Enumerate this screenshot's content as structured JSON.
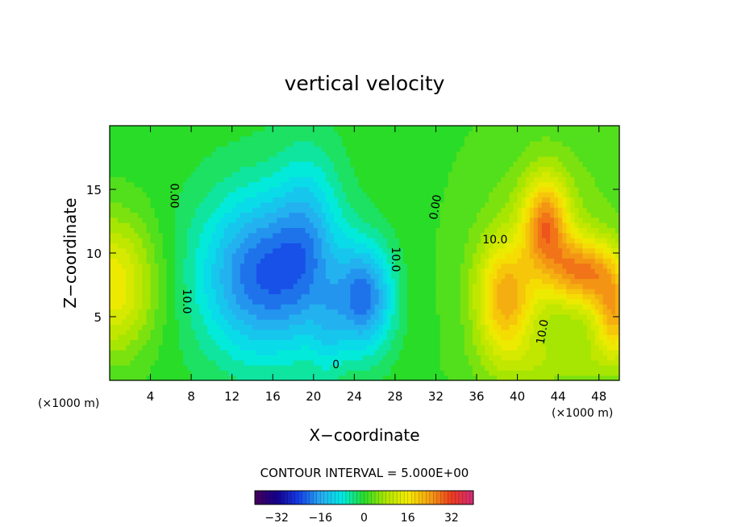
{
  "chart_data": {
    "type": "heatmap",
    "title": "vertical velocity",
    "xlabel": "X−coordinate",
    "ylabel": "Z−coordinate",
    "x_unit": "(×1000 m)",
    "x_unit_right": "(×1000 m)",
    "xlim": [
      0,
      50
    ],
    "ylim": [
      0,
      20
    ],
    "x_ticks": [
      4,
      8,
      12,
      16,
      20,
      24,
      28,
      32,
      36,
      40,
      44,
      48
    ],
    "y_ticks": [
      5,
      10,
      15
    ],
    "grid": false,
    "contour_interval_label": "CONTOUR INTERVAL = 5.000E+00",
    "colorbar": {
      "vmin": -40,
      "vmax": 40,
      "tick_labels": [
        "−32",
        "−16",
        "0",
        "16",
        "32"
      ],
      "tick_values": [
        -32,
        -16,
        0,
        16,
        32
      ]
    },
    "contour_labels": [
      {
        "text": "0.00",
        "x": 6.3,
        "z": 14.5,
        "rotate": 90
      },
      {
        "text": "0.00",
        "x": 32.0,
        "z": 13.6,
        "rotate": -80
      },
      {
        "text": "10.0",
        "x": 37.8,
        "z": 11.0,
        "rotate": 0
      },
      {
        "text": "10.0",
        "x": 7.5,
        "z": 6.2,
        "rotate": 90
      },
      {
        "text": "10.0",
        "x": 28.0,
        "z": 9.5,
        "rotate": 90
      },
      {
        "text": "10.0",
        "x": 42.5,
        "z": 3.8,
        "rotate": -80
      },
      {
        "text": "0",
        "x": 22.2,
        "z": 1.2,
        "rotate": 0
      }
    ],
    "features": [
      {
        "name": "left updraft",
        "x": 0.5,
        "z": 7.5,
        "peak": 16
      },
      {
        "name": "central downdraft",
        "x": 15.5,
        "z": 8.0,
        "peak": -22
      },
      {
        "name": "secondary downdraft",
        "x": 25.0,
        "z": 6.5,
        "peak": -20
      },
      {
        "name": "right updraft lobe upper",
        "x": 42.8,
        "z": 12.0,
        "peak": 24
      },
      {
        "name": "right updraft lobe lower",
        "x": 38.7,
        "z": 5.5,
        "peak": 20
      },
      {
        "name": "right updraft lobe diagonal",
        "x": 46.0,
        "z": 8.5,
        "peak": 24
      },
      {
        "name": "right edge updraft",
        "x": 49.5,
        "z": 5.0,
        "peak": 20
      }
    ]
  }
}
